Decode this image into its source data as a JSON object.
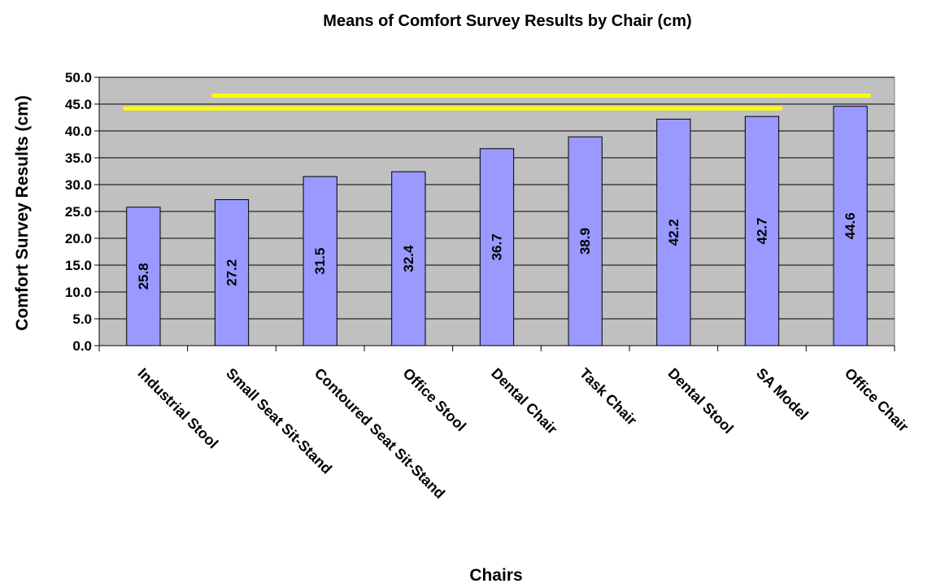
{
  "chart_data": {
    "type": "bar",
    "title": "Means of Comfort Survey Results by Chair (cm)",
    "xlabel": "Chairs",
    "ylabel": "Comfort Survey Results (cm)",
    "categories": [
      "Industrial Stool",
      "Small Seat Sit-Stand",
      "Contoured Seat Sit-Stand",
      "Office Stool",
      "Dental Chair",
      "Task Chair",
      "Dental Stool",
      "SA Model",
      "Office Chair"
    ],
    "values": [
      25.8,
      27.2,
      31.5,
      32.4,
      36.7,
      38.9,
      42.2,
      42.7,
      44.6
    ],
    "data_labels": [
      "25.8",
      "27.2",
      "31.5",
      "32.4",
      "36.7",
      "38.9",
      "42.2",
      "42.7",
      "44.6"
    ],
    "y_ticks": [
      "0.0",
      "5.0",
      "10.0",
      "15.0",
      "20.0",
      "25.0",
      "30.0",
      "35.0",
      "40.0",
      "45.0",
      "50.0"
    ],
    "ylim": [
      0,
      50
    ],
    "grid": true,
    "legend": "none",
    "colors": {
      "bar": "#9999ff",
      "plot_background": "#c0c0c0",
      "gridline": "#000000",
      "highlight_line": "#ffff00"
    },
    "highlight_lines": [
      {
        "y": 44.2,
        "from": "Industrial Stool",
        "to": "SA Model"
      },
      {
        "y": 46.6,
        "from": "Small Seat Sit-Stand",
        "to": "Office Chair"
      }
    ]
  }
}
